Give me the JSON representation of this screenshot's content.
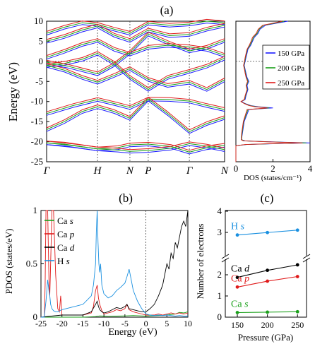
{
  "panel_labels": {
    "a": "(a)",
    "b": "(b)",
    "c": "(c)"
  },
  "colors": {
    "p150": "#1a1aff",
    "p200": "#1aa01a",
    "p250": "#e01a1a",
    "ca_s": "#1aa01a",
    "ca_p": "#e01a1a",
    "ca_d": "#000000",
    "h_s": "#1a90e0"
  },
  "chart_data": [
    {
      "id": "bands",
      "type": "line",
      "title": "(a)",
      "xlabel": "",
      "ylabel": "Energy (eV)",
      "ylim": [
        -25,
        10
      ],
      "yticks": [
        -25,
        -20,
        -15,
        -10,
        -5,
        0,
        5,
        10
      ],
      "kpoints": [
        "Γ",
        "H",
        "N",
        "P",
        "Γ",
        "N"
      ],
      "kpos": [
        0,
        0.286,
        0.468,
        0.571,
        0.802,
        1.0
      ],
      "series": [
        {
          "name": "150 GPa",
          "color": "#1a1aff",
          "offset": -0.45
        },
        {
          "name": "200 GPa",
          "color": "#1aa01a",
          "offset": 0
        },
        {
          "name": "250 GPa",
          "color": "#e01a1a",
          "offset": 0.45
        }
      ]
    },
    {
      "id": "dos",
      "type": "line",
      "xlabel": "DOS (states/cm⁻¹)",
      "ylabel": "",
      "xlim": [
        0,
        4
      ],
      "xticks": [
        0,
        2,
        4
      ],
      "ylim": [
        -25,
        10
      ],
      "legend": "top-right",
      "series": [
        {
          "name": "150 GPa",
          "color": "#1a1aff",
          "energy": [
            -25,
            -21,
            -20.7,
            -20.5,
            -20.3,
            -20.1,
            -19.8,
            -19.5,
            -18,
            -15,
            -12,
            -11.6,
            -11.3,
            -11,
            -10.5,
            -10,
            -9.5,
            -8.5,
            -7,
            -6,
            -5,
            -4,
            -3,
            -2,
            -1,
            0,
            1,
            2,
            3,
            4,
            5,
            6,
            7,
            8,
            9,
            9.5,
            10
          ],
          "dos": [
            0,
            0,
            0.6,
            2.2,
            4,
            2.3,
            0.5,
            0.3,
            0.35,
            0.45,
            0.7,
            2.0,
            1.2,
            0.8,
            0.5,
            0.3,
            0.5,
            0.55,
            0.65,
            0.6,
            0.7,
            0.6,
            0.55,
            0.5,
            0.45,
            0.5,
            0.55,
            0.6,
            0.65,
            0.8,
            0.9,
            1.0,
            1.2,
            1.3,
            1.6,
            2.2,
            2.8
          ]
        },
        {
          "name": "200 GPa",
          "color": "#1aa01a",
          "energy": [
            -25,
            -21,
            -20.7,
            -20.5,
            -20.3,
            -20.1,
            -19.8,
            -19.5,
            -18,
            -15,
            -12,
            -11.6,
            -11.3,
            -11,
            -10.5,
            -10,
            -9.5,
            -8.5,
            -7,
            -6,
            -5,
            -4,
            -3,
            -2,
            -1,
            0,
            1,
            2,
            3,
            4,
            5,
            6,
            7,
            8,
            9,
            9.5,
            10
          ],
          "dos": [
            0,
            0,
            0.55,
            2.0,
            3.8,
            2.1,
            0.45,
            0.3,
            0.33,
            0.42,
            0.65,
            1.8,
            1.1,
            0.75,
            0.47,
            0.28,
            0.47,
            0.52,
            0.62,
            0.57,
            0.66,
            0.57,
            0.52,
            0.48,
            0.43,
            0.48,
            0.52,
            0.57,
            0.62,
            0.76,
            0.86,
            0.95,
            1.15,
            1.25,
            1.5,
            2.1,
            2.6
          ]
        },
        {
          "name": "250 GPa",
          "color": "#e01a1a",
          "energy": [
            -25,
            -21,
            -20.7,
            -20.5,
            -20.3,
            -20.1,
            -19.8,
            -19.5,
            -18,
            -15,
            -12,
            -11.6,
            -11.3,
            -11,
            -10.5,
            -10,
            -9.5,
            -8.5,
            -7,
            -6,
            -5,
            -4,
            -3,
            -2,
            -1,
            0,
            1,
            2,
            3,
            4,
            5,
            6,
            7,
            8,
            9,
            9.5,
            10
          ],
          "dos": [
            0,
            0,
            0.5,
            1.9,
            3.6,
            2.0,
            0.4,
            0.28,
            0.31,
            0.4,
            0.6,
            1.7,
            1.0,
            0.7,
            0.45,
            0.27,
            0.45,
            0.5,
            0.6,
            0.55,
            0.63,
            0.55,
            0.5,
            0.46,
            0.41,
            0.46,
            0.5,
            0.55,
            0.6,
            0.72,
            0.82,
            0.9,
            1.1,
            1.2,
            1.45,
            2.0,
            2.5
          ]
        }
      ]
    },
    {
      "id": "pdos",
      "type": "line",
      "title": "(b)",
      "xlabel": "Energy (eV)",
      "ylabel": "PDOS (states/eV)",
      "xlim": [
        -25,
        10
      ],
      "xticks": [
        -25,
        -20,
        -15,
        -10,
        -5,
        0,
        5,
        10
      ],
      "ylim": [
        0,
        1
      ],
      "yticks": [
        0,
        0.5,
        1
      ],
      "legend": "top-left",
      "series": [
        {
          "name": "Ca s",
          "color": "#1aa01a",
          "x": [
            -25,
            -20,
            -15,
            -12,
            -11,
            -10,
            -9,
            -7,
            -5,
            -3,
            -1,
            0,
            1,
            3,
            5,
            7,
            8,
            9,
            10
          ],
          "y": [
            0,
            0,
            0,
            0.005,
            0.012,
            0.01,
            0.008,
            0.01,
            0.012,
            0.015,
            0.012,
            0.01,
            0.012,
            0.015,
            0.02,
            0.03,
            0.045,
            0.04,
            0.05
          ]
        },
        {
          "name": "Ca p",
          "color": "#e01a1a",
          "x": [
            -25,
            -24.2,
            -24,
            -23.8,
            -23.4,
            -23.1,
            -22.9,
            -22.7,
            -22.4,
            -22,
            -21.5,
            -21,
            -20.6,
            -20.3,
            -20,
            -15,
            -13,
            -12.5,
            -12,
            -11.6,
            -11.3,
            -11,
            -10.5,
            -10,
            -9,
            -8,
            -7,
            -6,
            -5,
            -4.5,
            -4,
            -3,
            -2,
            -1,
            0,
            1,
            2,
            3,
            4,
            5,
            6,
            7,
            8,
            9,
            10
          ],
          "y": [
            0,
            0,
            0.3,
            1,
            1,
            0.35,
            0.2,
            0.5,
            1,
            1,
            0.4,
            0.08,
            0.05,
            0.2,
            0.02,
            0.02,
            0.04,
            0.1,
            0.25,
            0.3,
            0.18,
            0.12,
            0.06,
            0.03,
            0.04,
            0.05,
            0.07,
            0.06,
            0.08,
            0.12,
            0.07,
            0.05,
            0.04,
            0.03,
            0.02,
            0.02,
            0.02,
            0.03,
            0.02,
            0.03,
            0.04,
            0.03,
            0.04,
            0.03,
            0.04
          ]
        },
        {
          "name": "Ca d",
          "color": "#000000",
          "x": [
            -25,
            -20,
            -15,
            -13,
            -12,
            -11.6,
            -11.3,
            -11,
            -10.5,
            -10,
            -9,
            -8,
            -7,
            -6,
            -5,
            -4.5,
            -4,
            -3,
            -2,
            -1,
            0,
            1,
            2,
            3,
            4,
            4.5,
            5,
            5.5,
            6,
            6.5,
            7,
            7.5,
            8,
            8.5,
            9,
            9.5,
            10
          ],
          "y": [
            0,
            0.02,
            0.02,
            0.05,
            0.12,
            0.15,
            0.1,
            0.07,
            0.05,
            0.04,
            0.05,
            0.07,
            0.09,
            0.08,
            0.1,
            0.12,
            0.08,
            0.07,
            0.06,
            0.05,
            0.05,
            0.08,
            0.12,
            0.2,
            0.3,
            0.4,
            0.5,
            0.45,
            0.6,
            0.55,
            0.7,
            0.65,
            0.75,
            0.85,
            0.9,
            0.85,
            1.0
          ]
        },
        {
          "name": "H s",
          "color": "#1a90e0",
          "x": [
            -25,
            -24.2,
            -24,
            -23.8,
            -23.4,
            -23.1,
            -22.9,
            -22.7,
            -22.4,
            -22,
            -21.5,
            -21,
            -20,
            -17,
            -15,
            -13,
            -12.5,
            -12,
            -11.8,
            -11.6,
            -11.4,
            -11.2,
            -11,
            -10.8,
            -10.5,
            -10,
            -9,
            -8,
            -7,
            -6,
            -5.5,
            -5,
            -4.5,
            -4,
            -3.5,
            -3,
            -2,
            -1,
            0,
            1,
            2,
            3,
            4,
            5,
            6,
            7,
            8,
            9,
            10
          ],
          "y": [
            0,
            0,
            0.08,
            0.15,
            0.35,
            0.25,
            0.2,
            0.12,
            0.08,
            0.06,
            0.05,
            0.05,
            0.07,
            0.1,
            0.12,
            0.2,
            0.3,
            0.5,
            0.8,
            1.0,
            0.7,
            0.5,
            0.42,
            0.5,
            0.3,
            0.22,
            0.18,
            0.2,
            0.25,
            0.28,
            0.3,
            0.32,
            0.38,
            0.45,
            0.35,
            0.25,
            0.15,
            0.08,
            0.03,
            0.02,
            0.015,
            0.02,
            0.015,
            0.02,
            0.015,
            0.01,
            0.015,
            0.01,
            0.01
          ]
        }
      ]
    },
    {
      "id": "electrons",
      "type": "scatter",
      "title": "(c)",
      "xlabel": "Pressure (GPa)",
      "ylabel": "Number of electrons",
      "x": [
        150,
        200,
        250
      ],
      "xticks": [
        150,
        200,
        250
      ],
      "lower_yticks": [
        0,
        1,
        2,
        3,
        4
      ],
      "upper_yticks": [
        4
      ],
      "series": [
        {
          "name": "H s",
          "color": "#1a90e0",
          "values": [
            0.52,
            0.53,
            0.54
          ]
        },
        {
          "name": "Ca d",
          "color": "#000000",
          "values": [
            0.95,
            1.12,
            1.25
          ]
        },
        {
          "name": "Ca p",
          "color": "#e01a1a",
          "values": [
            0.72,
            0.86,
            0.97
          ]
        },
        {
          "name": "Ca s",
          "color": "#1aa01a",
          "values": [
            0.11,
            0.12,
            0.13
          ]
        }
      ]
    }
  ]
}
